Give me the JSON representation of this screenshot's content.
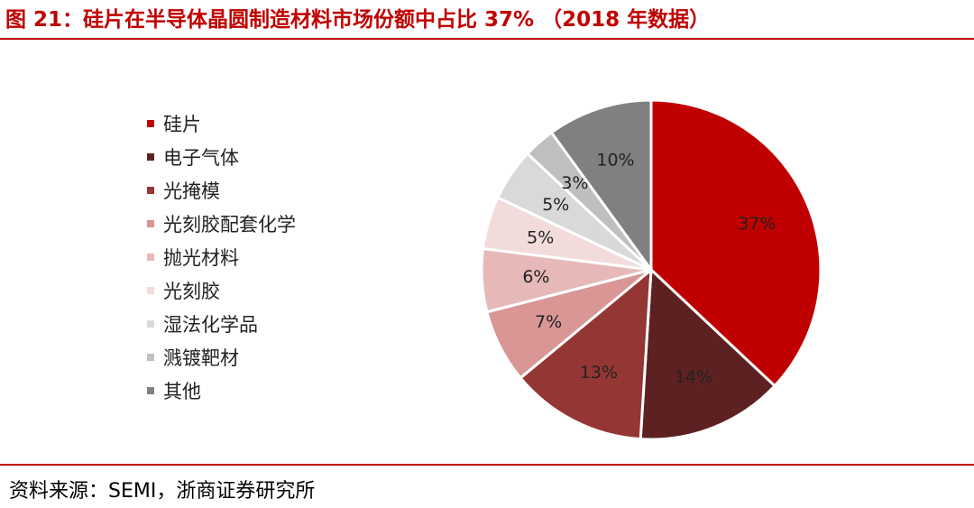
{
  "title": "图 21：硅片在半导体晶圆制造材料市场份额中占比 37% （2018 年数据）",
  "source": "资料来源：SEMI，浙商证券研究所",
  "chart_data": {
    "type": "pie",
    "categories": [
      "硅片",
      "电子气体",
      "光掩模",
      "光刻胶配套化学",
      "抛光材料",
      "光刻胶",
      "湿法化学品",
      "溅镀靶材",
      "其他"
    ],
    "values": [
      37,
      14,
      13,
      7,
      6,
      5,
      5,
      3,
      10
    ],
    "labels": [
      "37%",
      "14%",
      "13%",
      "7%",
      "6%",
      "5%",
      "5%",
      "3%",
      "10%"
    ],
    "colors": [
      "#c00000",
      "#5e2121",
      "#943634",
      "#d99694",
      "#e6b9b8",
      "#f2dcdb",
      "#d9d9d9",
      "#bfbfbf",
      "#808080"
    ],
    "legend_position": "left"
  }
}
